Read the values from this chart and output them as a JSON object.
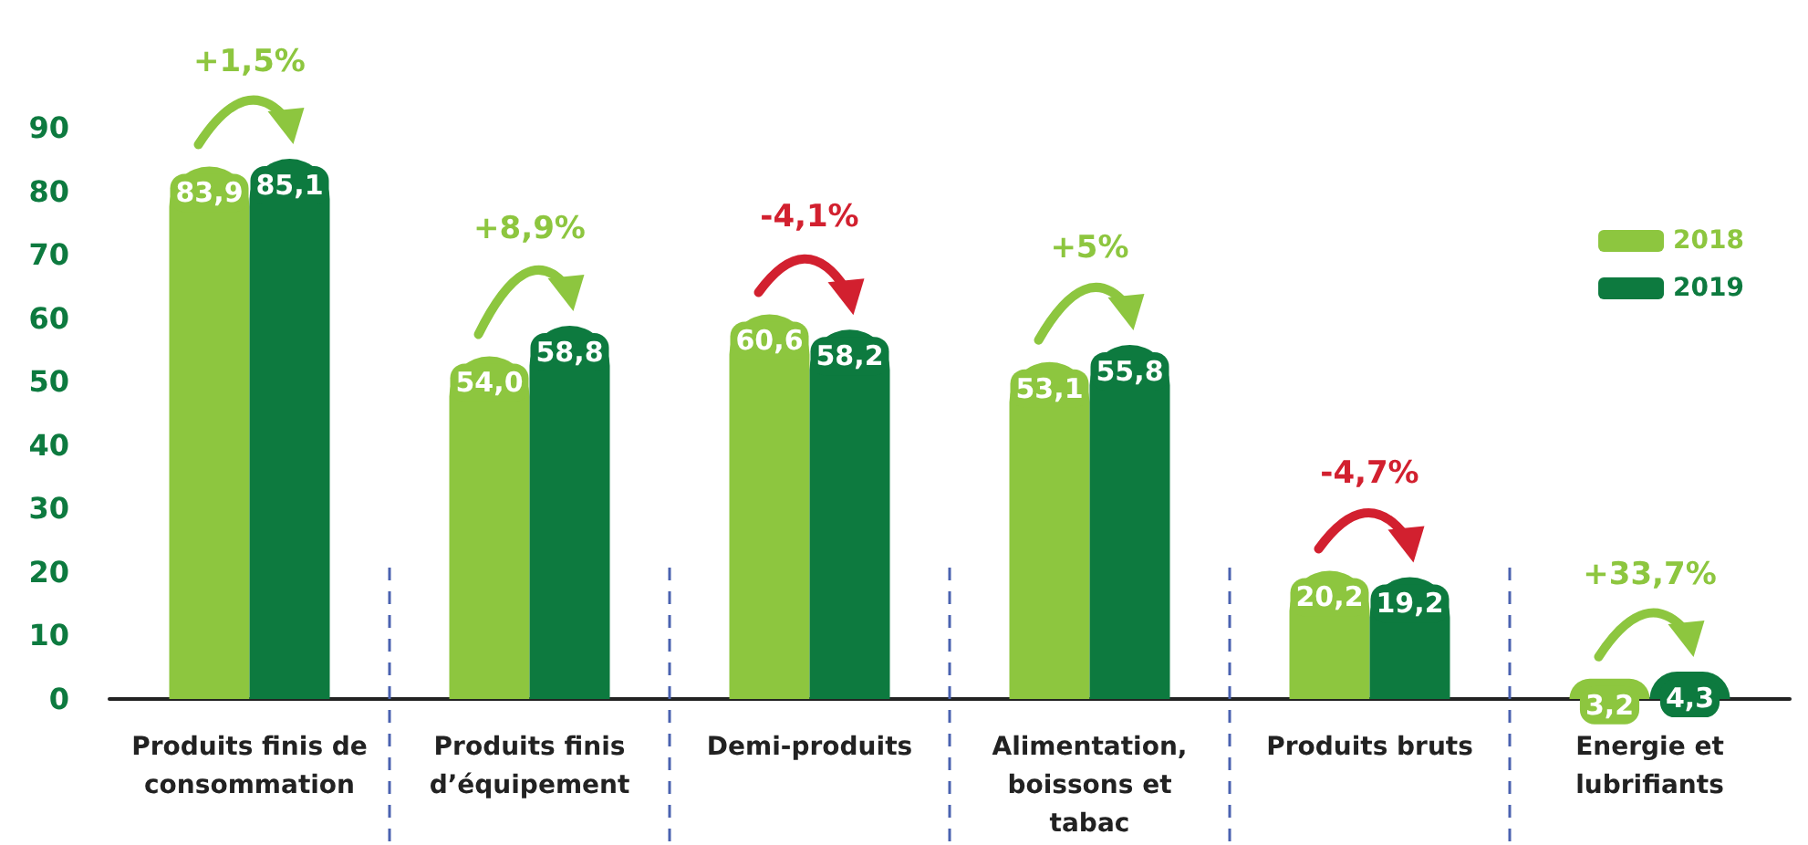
{
  "chart_data": {
    "type": "bar",
    "categories": [
      "Produits finis de\nconsommation",
      "Produits finis\nd’équipement",
      "Demi-produits",
      "Alimentation,\nboissons et\ntabac",
      "Produits bruts",
      "Energie et\nlubrifiants"
    ],
    "series": [
      {
        "name": "2018",
        "color": "#8dc63f",
        "values": [
          83.9,
          54.0,
          60.6,
          53.1,
          20.2,
          3.2
        ],
        "value_labels": [
          "83,9",
          "54,0",
          "60,6",
          "53,1",
          "20,2",
          "3,2"
        ]
      },
      {
        "name": "2019",
        "color": "#0d7a3f",
        "values": [
          85.1,
          58.8,
          58.2,
          55.8,
          19.2,
          4.3
        ],
        "value_labels": [
          "85,1",
          "58,8",
          "58,2",
          "55,8",
          "19,2",
          "4,3"
        ]
      }
    ],
    "ylim": [
      0,
      90
    ],
    "yticks": [
      0,
      10,
      20,
      30,
      40,
      50,
      60,
      70,
      80,
      90
    ],
    "grid": false,
    "legend": "top right",
    "annotations": [
      "+1,5%",
      "+8,9%",
      "-4,1%",
      "+5%",
      "-4,7%",
      "+33,7%"
    ]
  }
}
